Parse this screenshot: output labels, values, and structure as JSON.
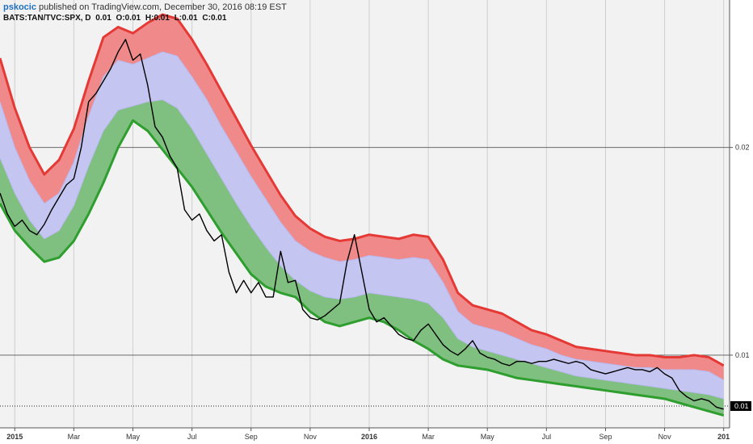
{
  "header": {
    "author": "pskocic",
    "published_text": " published on TradingView.com, December 30, 2016 08:19 EST"
  },
  "symbol": {
    "ticker": "BATS:TAN/TVC:SPX, D",
    "value": "0.01",
    "open": "O:0.01",
    "high": "H:0.01",
    "low": "L:0.01",
    "close": "C:0.01"
  },
  "colors": {
    "upper_band": "#e53935",
    "upper_fill": "#f08a8a",
    "middle_fill": "#c5c5f2",
    "lower_fill": "#7fbf7f",
    "lower_band": "#2e9e2e",
    "price": "#000000",
    "background": "#f2f2f2",
    "grid": "#cfcfcf"
  },
  "chart_data": {
    "type": "line",
    "title": "",
    "x_tick_labels": [
      "2015",
      "Mar",
      "May",
      "Jul",
      "Sep",
      "Nov",
      "2016",
      "Mar",
      "May",
      "Jul",
      "Sep",
      "Nov",
      "201"
    ],
    "x_ticks_months": [
      0,
      2,
      4,
      6,
      8,
      10,
      12,
      14,
      16,
      18,
      20,
      22,
      24
    ],
    "xlim_months": [
      -0.5,
      24.2
    ],
    "y_tick_labels": [
      "0.02",
      "0.01"
    ],
    "y_ticks": [
      0.02,
      0.01
    ],
    "ylim": [
      0.0065,
      0.0271
    ],
    "last_value_label": "0.01",
    "last_value": 0.00755,
    "series": [
      {
        "role": "upper band",
        "x": [
          -0.5,
          0,
          0.5,
          1,
          1.5,
          2,
          2.5,
          3,
          3.5,
          4,
          4.5,
          5,
          5.5,
          6,
          6.5,
          7,
          7.5,
          8,
          8.5,
          9,
          9.5,
          10,
          10.5,
          11,
          11.5,
          12,
          12.5,
          13,
          13.5,
          14,
          14.5,
          15,
          15.5,
          16,
          16.5,
          17,
          17.5,
          18,
          18.5,
          19,
          19.5,
          20,
          20.5,
          21,
          21.5,
          22,
          22.5,
          23,
          23.5,
          24
        ],
        "y": [
          0.0243,
          0.0219,
          0.02,
          0.0187,
          0.0194,
          0.0209,
          0.0232,
          0.0253,
          0.0258,
          0.0255,
          0.026,
          0.0264,
          0.0262,
          0.0252,
          0.024,
          0.0227,
          0.0214,
          0.0201,
          0.0189,
          0.0177,
          0.0167,
          0.0161,
          0.0157,
          0.0155,
          0.0156,
          0.0158,
          0.0157,
          0.0156,
          0.0158,
          0.0157,
          0.0146,
          0.013,
          0.0124,
          0.0122,
          0.012,
          0.0116,
          0.0112,
          0.011,
          0.0107,
          0.0104,
          0.0103,
          0.0102,
          0.0101,
          0.01,
          0.01,
          0.0099,
          0.0099,
          0.01,
          0.0099,
          0.0095
        ]
      },
      {
        "role": "mid-upper line",
        "x": [
          -0.5,
          0,
          0.5,
          1,
          1.5,
          2,
          2.5,
          3,
          3.5,
          4,
          4.5,
          5,
          5.5,
          6,
          6.5,
          7,
          7.5,
          8,
          8.5,
          9,
          9.5,
          10,
          10.5,
          11,
          11.5,
          12,
          12.5,
          13,
          13.5,
          14,
          14.5,
          15,
          15.5,
          16,
          16.5,
          17,
          17.5,
          18,
          18.5,
          19,
          19.5,
          20,
          20.5,
          21,
          21.5,
          22,
          22.5,
          23,
          23.5,
          24
        ],
        "y": [
          0.0222,
          0.02,
          0.0184,
          0.0173,
          0.0178,
          0.0193,
          0.0215,
          0.0234,
          0.0242,
          0.024,
          0.0243,
          0.0246,
          0.0244,
          0.0234,
          0.0223,
          0.021,
          0.0198,
          0.0186,
          0.0175,
          0.0164,
          0.0155,
          0.015,
          0.0147,
          0.0145,
          0.0146,
          0.0148,
          0.0147,
          0.0146,
          0.0147,
          0.0146,
          0.0135,
          0.0121,
          0.0115,
          0.0113,
          0.0111,
          0.0108,
          0.0105,
          0.0103,
          0.01,
          0.0098,
          0.0097,
          0.0096,
          0.0095,
          0.0094,
          0.0094,
          0.0093,
          0.0093,
          0.0093,
          0.0092,
          0.0088
        ]
      },
      {
        "role": "mid-lower line",
        "x": [
          -0.5,
          0,
          0.5,
          1,
          1.5,
          2,
          2.5,
          3,
          3.5,
          4,
          4.5,
          5,
          5.5,
          6,
          6.5,
          7,
          7.5,
          8,
          8.5,
          9,
          9.5,
          10,
          10.5,
          11,
          11.5,
          12,
          12.5,
          13,
          13.5,
          14,
          14.5,
          15,
          15.5,
          16,
          16.5,
          17,
          17.5,
          18,
          18.5,
          19,
          19.5,
          20,
          20.5,
          21,
          21.5,
          22,
          22.5,
          23,
          23.5,
          24
        ],
        "y": [
          0.0195,
          0.0178,
          0.0165,
          0.0156,
          0.016,
          0.0172,
          0.0191,
          0.0208,
          0.0218,
          0.022,
          0.0222,
          0.0223,
          0.0219,
          0.0209,
          0.0197,
          0.0185,
          0.0173,
          0.0162,
          0.0152,
          0.0143,
          0.0136,
          0.0131,
          0.0128,
          0.0127,
          0.0128,
          0.013,
          0.0129,
          0.0128,
          0.0127,
          0.0125,
          0.0118,
          0.0108,
          0.0104,
          0.0102,
          0.01,
          0.0098,
          0.0096,
          0.0094,
          0.0092,
          0.009,
          0.0089,
          0.0088,
          0.0087,
          0.0086,
          0.0085,
          0.0084,
          0.0083,
          0.0082,
          0.0081,
          0.0079
        ]
      },
      {
        "role": "lower band",
        "x": [
          -0.5,
          0,
          0.5,
          1,
          1.5,
          2,
          2.5,
          3,
          3.5,
          4,
          4.5,
          5,
          5.5,
          6,
          6.5,
          7,
          7.5,
          8,
          8.5,
          9,
          9.5,
          10,
          10.5,
          11,
          11.5,
          12,
          12.5,
          13,
          13.5,
          14,
          14.5,
          15,
          15.5,
          16,
          16.5,
          17,
          17.5,
          18,
          18.5,
          19,
          19.5,
          20,
          20.5,
          21,
          21.5,
          22,
          22.5,
          23,
          23.5,
          24
        ],
        "y": [
          0.0173,
          0.016,
          0.0152,
          0.0145,
          0.0147,
          0.0155,
          0.0168,
          0.0183,
          0.02,
          0.0213,
          0.0208,
          0.0199,
          0.019,
          0.0181,
          0.017,
          0.0159,
          0.0149,
          0.0139,
          0.0133,
          0.013,
          0.0128,
          0.0121,
          0.0116,
          0.0114,
          0.0116,
          0.0118,
          0.0116,
          0.0112,
          0.0107,
          0.0103,
          0.0098,
          0.0095,
          0.0094,
          0.0093,
          0.0091,
          0.0089,
          0.0088,
          0.0087,
          0.0086,
          0.0085,
          0.0084,
          0.0083,
          0.0082,
          0.0081,
          0.008,
          0.0079,
          0.0077,
          0.0075,
          0.0073,
          0.0071
        ]
      },
      {
        "role": "price",
        "x": [
          -0.5,
          -0.25,
          0,
          0.25,
          0.5,
          0.75,
          1,
          1.25,
          1.5,
          1.75,
          2,
          2.25,
          2.5,
          2.75,
          3,
          3.25,
          3.5,
          3.75,
          4,
          4.25,
          4.5,
          4.75,
          5,
          5.25,
          5.5,
          5.75,
          6,
          6.25,
          6.5,
          6.75,
          7,
          7.25,
          7.5,
          7.75,
          8,
          8.25,
          8.5,
          8.75,
          9,
          9.25,
          9.5,
          9.75,
          10,
          10.25,
          10.5,
          10.75,
          11,
          11.25,
          11.5,
          11.75,
          12,
          12.25,
          12.5,
          12.75,
          13,
          13.25,
          13.5,
          13.75,
          14,
          14.25,
          14.5,
          14.75,
          15,
          15.25,
          15.5,
          15.75,
          16,
          16.25,
          16.5,
          16.75,
          17,
          17.25,
          17.5,
          17.75,
          18,
          18.25,
          18.5,
          18.75,
          19,
          19.25,
          19.5,
          19.75,
          20,
          20.25,
          20.5,
          20.75,
          21,
          21.25,
          21.5,
          21.75,
          22,
          22.25,
          22.5,
          22.75,
          23,
          23.25,
          23.5,
          23.75,
          24
        ],
        "y": [
          0.0178,
          0.0168,
          0.0162,
          0.0165,
          0.016,
          0.0158,
          0.0163,
          0.017,
          0.0176,
          0.0182,
          0.0185,
          0.02,
          0.0222,
          0.0226,
          0.0232,
          0.0238,
          0.0246,
          0.0252,
          0.0242,
          0.0245,
          0.023,
          0.021,
          0.0205,
          0.0196,
          0.019,
          0.017,
          0.0165,
          0.0168,
          0.016,
          0.0155,
          0.0158,
          0.014,
          0.013,
          0.0136,
          0.013,
          0.0135,
          0.0128,
          0.0128,
          0.015,
          0.0135,
          0.0136,
          0.0122,
          0.0118,
          0.0117,
          0.0119,
          0.0122,
          0.0125,
          0.0145,
          0.0158,
          0.014,
          0.0122,
          0.0116,
          0.0118,
          0.0114,
          0.011,
          0.0108,
          0.0107,
          0.0112,
          0.0115,
          0.011,
          0.0105,
          0.0102,
          0.01,
          0.0103,
          0.0107,
          0.0101,
          0.0099,
          0.0098,
          0.0096,
          0.0095,
          0.0097,
          0.0097,
          0.0096,
          0.0097,
          0.0097,
          0.0098,
          0.0097,
          0.0096,
          0.0097,
          0.0096,
          0.0093,
          0.0092,
          0.0091,
          0.0092,
          0.0093,
          0.0094,
          0.0093,
          0.0093,
          0.0092,
          0.0094,
          0.0091,
          0.0089,
          0.0083,
          0.008,
          0.0078,
          0.0079,
          0.0078,
          0.0075,
          0.0074
        ]
      }
    ]
  }
}
